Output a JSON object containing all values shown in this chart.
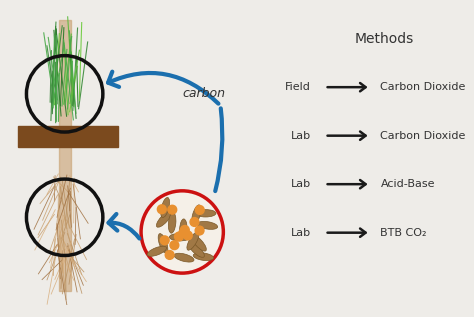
{
  "bg_color": "#eeece8",
  "title": "Methods",
  "title_fontsize": 10,
  "rows": [
    {
      "label": "Field",
      "arrow_label": "Carbon Dioxide"
    },
    {
      "label": "Lab",
      "arrow_label": "Carbon Dioxide"
    },
    {
      "label": "Lab",
      "arrow_label": "Acid-Base"
    },
    {
      "label": "Lab",
      "arrow_label": "BTB CO₂"
    }
  ],
  "text_color": "#333333",
  "arrow_color": "#1a1a1a",
  "blue_arrow_color": "#1b6fae",
  "plant_circle_color": "#111111",
  "soil_circle_color": "#111111",
  "microbe_circle_color": "#cc1111",
  "ground_bar_color": "#7B4A1E",
  "stem_color": "#c8a070"
}
